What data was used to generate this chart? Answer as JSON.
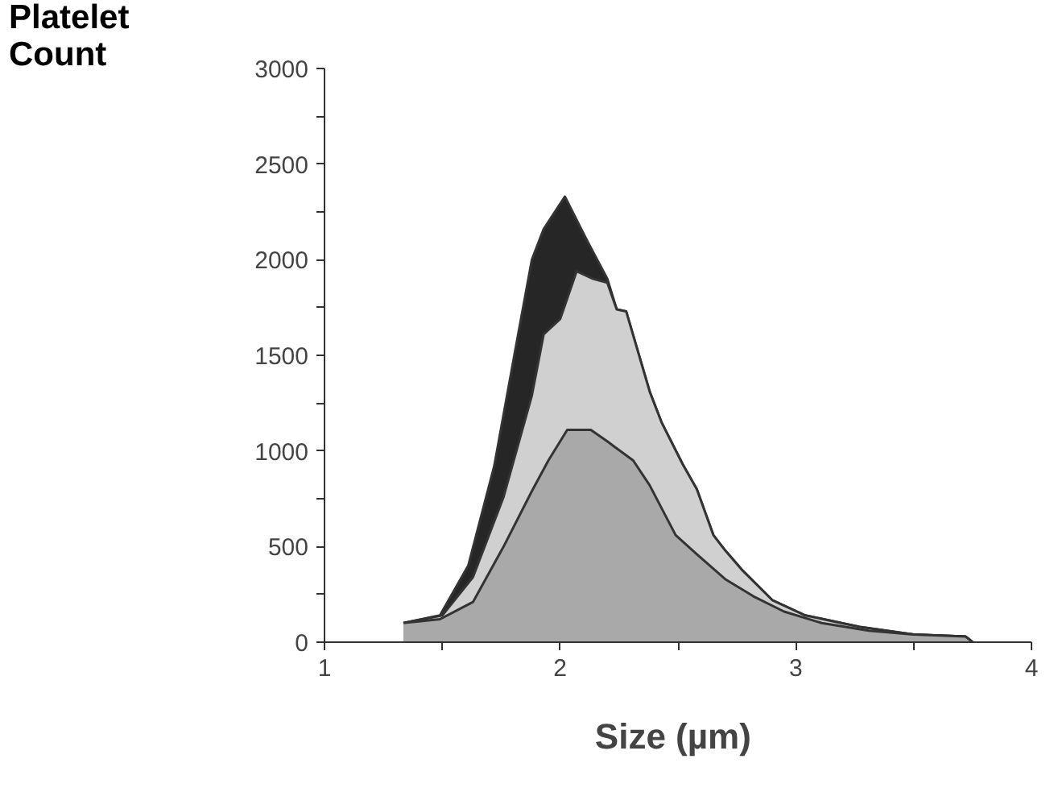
{
  "chart_data": {
    "type": "area",
    "xlabel": "Size  (µm)",
    "ylabel": "Platelet Count",
    "xlim": [
      1,
      4
    ],
    "ylim": [
      0,
      3000
    ],
    "xticks": [
      1,
      {
        "value": 1.5,
        "label": null
      },
      2,
      {
        "value": 2.5,
        "label": null
      },
      3,
      {
        "value": 3.5,
        "label": null
      },
      4
    ],
    "yticks": [
      0,
      {
        "value": 250,
        "label": null
      },
      500,
      {
        "value": 750,
        "label": null
      },
      1000,
      {
        "value": 1250,
        "label": null
      },
      1500,
      {
        "value": 1750,
        "label": null
      },
      2000,
      {
        "value": 2250,
        "label": null
      },
      2500,
      {
        "value": 2750,
        "label": null
      },
      3000
    ],
    "grid": false,
    "series": [
      {
        "color": "#262626",
        "x": [
          1.335,
          1.49,
          1.61,
          1.72,
          1.81,
          1.88,
          1.93,
          2.02,
          2.11,
          2.14,
          2.2,
          2.24,
          2.28,
          2.38,
          2.43,
          2.52,
          2.58,
          2.65,
          2.7,
          2.77,
          2.9,
          3.04,
          3.27,
          3.5,
          3.72,
          3.75
        ],
        "values": [
          100,
          140,
          400,
          920,
          1530,
          2000,
          2160,
          2330,
          2110,
          2040,
          1900,
          1740,
          1730,
          1310,
          1150,
          930,
          800,
          560,
          480,
          380,
          220,
          140,
          80,
          40,
          30,
          0
        ]
      },
      {
        "color": "#d0d0d0",
        "x": [
          1.335,
          1.5,
          1.63,
          1.76,
          1.88,
          1.93,
          2.0,
          2.07,
          2.14,
          2.2,
          2.24,
          2.28,
          2.38,
          2.43,
          2.52,
          2.58,
          2.65,
          2.7,
          2.77,
          2.9,
          3.04,
          3.27,
          3.5,
          3.72,
          3.75
        ],
        "values": [
          100,
          140,
          340,
          760,
          1290,
          1610,
          1690,
          1940,
          1900,
          1880,
          1740,
          1730,
          1310,
          1150,
          930,
          800,
          560,
          480,
          380,
          220,
          140,
          80,
          40,
          30,
          0
        ]
      },
      {
        "color": "#a9a9a9",
        "x": [
          1.335,
          1.49,
          1.63,
          1.76,
          1.88,
          1.95,
          2.03,
          2.13,
          2.2,
          2.31,
          2.38,
          2.49,
          2.58,
          2.7,
          2.82,
          2.95,
          3.11,
          3.31,
          3.5,
          3.72,
          3.75
        ],
        "values": [
          100,
          120,
          210,
          500,
          790,
          950,
          1110,
          1110,
          1050,
          950,
          820,
          560,
          460,
          330,
          240,
          160,
          100,
          60,
          40,
          30,
          0
        ]
      }
    ]
  }
}
